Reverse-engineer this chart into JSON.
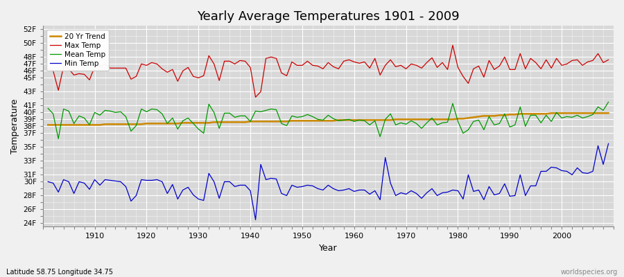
{
  "title": "Yearly Average Temperatures 1901 - 2009",
  "xlabel": "Year",
  "ylabel": "Temperature",
  "x_start": 1901,
  "x_end": 2009,
  "legend_labels": [
    "Max Temp",
    "Mean Temp",
    "Min Temp",
    "20 Yr Trend"
  ],
  "line_colors": [
    "#cc0000",
    "#009900",
    "#0000cc",
    "#cc8800"
  ],
  "bg_color": "#f0f0f0",
  "plot_bg": "#d8d8d8",
  "ytick_vals": [
    24,
    26,
    28,
    30,
    31,
    33,
    35,
    37,
    38,
    39,
    40,
    41,
    43,
    45,
    46,
    47,
    48,
    50,
    52
  ],
  "ytick_labs": [
    "24F",
    "26F",
    "28F",
    "30F",
    "31F",
    "33F",
    "35F",
    "37F",
    "38F",
    "39F",
    "40F",
    "41F",
    "43F",
    "45F",
    "46F",
    "47F",
    "48F",
    "50F",
    "52F"
  ],
  "ylim": [
    23.5,
    52.5
  ],
  "xlim": [
    1900,
    2010
  ],
  "footer_left": "Latitude 58.75 Longitude 34.75",
  "footer_right": "worldspecies.org",
  "max_temp": [
    46.4,
    46.0,
    43.2,
    46.6,
    46.3,
    45.4,
    45.6,
    45.5,
    44.7,
    46.6,
    46.6,
    47.0,
    46.4,
    46.4,
    46.4,
    46.4,
    44.8,
    45.2,
    47.0,
    46.8,
    47.2,
    47.0,
    46.3,
    45.8,
    46.2,
    44.5,
    46.0,
    46.5,
    45.2,
    45.0,
    45.3,
    48.2,
    47.0,
    44.6,
    47.4,
    47.4,
    47.0,
    47.5,
    47.4,
    46.5,
    42.2,
    43.0,
    47.8,
    48.0,
    47.8,
    45.7,
    45.3,
    47.3,
    46.8,
    46.8,
    47.4,
    46.8,
    46.7,
    46.3,
    47.2,
    46.6,
    46.3,
    47.4,
    47.6,
    47.3,
    47.1,
    47.3,
    46.4,
    47.8,
    45.4,
    46.8,
    47.6,
    46.6,
    46.8,
    46.3,
    47.0,
    46.8,
    46.4,
    47.2,
    47.9,
    46.5,
    47.2,
    46.2,
    49.7,
    46.5,
    45.2,
    44.2,
    46.3,
    46.7,
    45.1,
    47.5,
    46.2,
    46.7,
    48.0,
    46.2,
    46.2,
    48.5,
    46.3,
    47.8,
    47.2,
    46.3,
    47.6,
    46.4,
    47.8,
    46.8,
    47.0,
    47.5,
    47.6,
    46.8,
    47.3,
    47.5,
    48.5,
    47.2,
    47.6
  ],
  "mean_temp": [
    40.6,
    39.8,
    36.2,
    40.5,
    40.2,
    38.4,
    39.5,
    39.2,
    38.2,
    40.0,
    39.6,
    40.3,
    40.2,
    40.0,
    40.1,
    39.4,
    37.3,
    38.1,
    40.5,
    40.1,
    40.5,
    40.4,
    39.8,
    38.4,
    39.2,
    37.6,
    38.8,
    39.2,
    38.4,
    37.6,
    37.0,
    41.2,
    40.0,
    37.7,
    39.9,
    39.9,
    39.3,
    39.5,
    39.5,
    38.7,
    40.2,
    40.1,
    40.3,
    40.5,
    40.4,
    38.4,
    38.1,
    39.5,
    39.3,
    39.4,
    39.7,
    39.4,
    39.0,
    38.9,
    39.6,
    39.1,
    38.8,
    38.9,
    39.0,
    38.7,
    38.9,
    38.8,
    38.2,
    38.8,
    36.5,
    39.0,
    39.8,
    38.2,
    38.5,
    38.3,
    38.8,
    38.4,
    37.7,
    38.5,
    39.2,
    38.2,
    38.5,
    38.6,
    41.3,
    38.7,
    37.0,
    37.5,
    38.7,
    38.9,
    37.5,
    39.4,
    38.2,
    38.4,
    39.8,
    37.9,
    38.2,
    40.8,
    38.0,
    39.6,
    39.6,
    38.5,
    39.6,
    38.7,
    40.0,
    39.2,
    39.4,
    39.3,
    39.6,
    39.2,
    39.4,
    39.7,
    40.8,
    40.3,
    41.5
  ],
  "min_temp": [
    30.0,
    29.8,
    28.5,
    30.3,
    30.0,
    28.3,
    30.0,
    29.8,
    28.9,
    30.3,
    29.5,
    30.3,
    30.2,
    30.1,
    30.0,
    29.3,
    27.2,
    28.0,
    30.3,
    30.2,
    30.2,
    30.3,
    30.0,
    28.3,
    29.6,
    27.5,
    28.8,
    29.2,
    28.1,
    27.5,
    27.3,
    31.2,
    30.0,
    27.6,
    30.0,
    30.0,
    29.3,
    29.5,
    29.5,
    28.7,
    24.5,
    32.5,
    30.3,
    30.5,
    30.4,
    28.3,
    28.0,
    29.5,
    29.2,
    29.3,
    29.5,
    29.4,
    29.0,
    28.8,
    29.5,
    29.0,
    28.7,
    28.8,
    29.0,
    28.6,
    28.8,
    28.8,
    28.2,
    28.7,
    27.4,
    33.5,
    29.8,
    28.0,
    28.4,
    28.2,
    28.7,
    28.3,
    27.6,
    28.4,
    29.0,
    28.0,
    28.4,
    28.5,
    28.8,
    28.7,
    27.5,
    31.0,
    28.6,
    28.8,
    27.4,
    29.3,
    28.1,
    28.3,
    29.7,
    27.9,
    28.0,
    31.0,
    28.0,
    29.4,
    29.4,
    31.5,
    31.5,
    32.1,
    32.0,
    31.6,
    31.5,
    31.0,
    32.0,
    31.3,
    31.2,
    31.5,
    35.2,
    32.5,
    35.5
  ],
  "trend": [
    38.2,
    38.2,
    38.2,
    38.2,
    38.2,
    38.2,
    38.2,
    38.2,
    38.2,
    38.2,
    38.2,
    38.3,
    38.3,
    38.3,
    38.3,
    38.3,
    38.3,
    38.3,
    38.3,
    38.4,
    38.4,
    38.4,
    38.4,
    38.4,
    38.4,
    38.4,
    38.5,
    38.5,
    38.5,
    38.5,
    38.5,
    38.5,
    38.6,
    38.6,
    38.6,
    38.6,
    38.6,
    38.6,
    38.6,
    38.7,
    38.7,
    38.7,
    38.7,
    38.7,
    38.7,
    38.7,
    38.7,
    38.8,
    38.8,
    38.8,
    38.8,
    38.8,
    38.8,
    38.8,
    38.8,
    38.8,
    38.9,
    38.9,
    38.9,
    38.9,
    38.9,
    38.9,
    38.9,
    38.9,
    38.9,
    38.9,
    38.9,
    39.0,
    39.0,
    39.0,
    39.0,
    39.0,
    39.0,
    39.0,
    39.0,
    39.0,
    39.0,
    39.0,
    39.0,
    39.1,
    39.1,
    39.2,
    39.3,
    39.4,
    39.5,
    39.5,
    39.5,
    39.6,
    39.6,
    39.7,
    39.7,
    39.8,
    39.8,
    39.8,
    39.8,
    39.8,
    39.8,
    39.9,
    39.9,
    39.9,
    39.9,
    39.9,
    39.9,
    39.9,
    39.9,
    39.9,
    39.9,
    39.9,
    39.9
  ]
}
